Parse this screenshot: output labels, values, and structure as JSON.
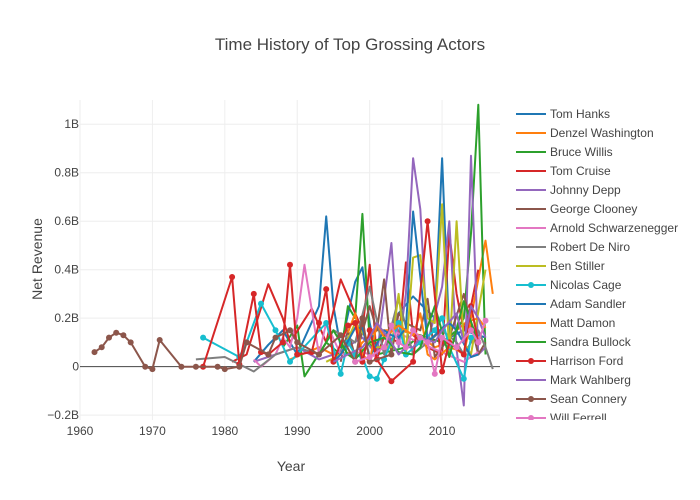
{
  "chart_data": {
    "type": "line",
    "title": "Time History of Top Grossing Actors",
    "xlabel": "Year",
    "ylabel": "Net Revenue",
    "xlim": [
      1960,
      2018
    ],
    "ylim": [
      -0.22,
      1.1
    ],
    "x_ticks": [
      1960,
      1970,
      1980,
      1990,
      2000,
      2010
    ],
    "y_ticks": [
      {
        "value": -0.2,
        "label": "−0.2B"
      },
      {
        "value": 0,
        "label": "0"
      },
      {
        "value": 0.2,
        "label": "0.2B"
      },
      {
        "value": 0.4,
        "label": "0.4B"
      },
      {
        "value": 0.6,
        "label": "0.6B"
      },
      {
        "value": 0.8,
        "label": "0.8B"
      },
      {
        "value": 1.0,
        "label": "1B"
      }
    ],
    "grid": true,
    "legend_position": "right",
    "series": [
      {
        "name": "Tom Hanks",
        "color": "#1f77b4",
        "marker": "none",
        "x": [
          1984,
          1986,
          1988,
          1990,
          1993,
          1994,
          1995,
          1996,
          1998,
          1999,
          2000,
          2001,
          2002,
          2004,
          2006,
          2009,
          2010,
          2011,
          2013,
          2016
        ],
        "y": [
          0.02,
          0.09,
          0.15,
          0.05,
          0.25,
          0.62,
          0.25,
          0.08,
          0.35,
          0.41,
          0.18,
          0.05,
          0.12,
          0.22,
          0.29,
          0.2,
          0.86,
          0.12,
          0.15,
          0.12
        ]
      },
      {
        "name": "Denzel Washington",
        "color": "#ff7f0e",
        "marker": "none",
        "x": [
          1989,
          1993,
          1995,
          1998,
          1999,
          2001,
          2004,
          2007,
          2009,
          2010,
          2012,
          2014,
          2016,
          2017
        ],
        "y": [
          0.03,
          0.08,
          0.05,
          0.06,
          0.1,
          0.15,
          0.15,
          0.13,
          0.08,
          0.09,
          0.15,
          0.2,
          0.52,
          0.3
        ]
      },
      {
        "name": "Bruce Willis",
        "color": "#2ca02c",
        "marker": "none",
        "x": [
          1988,
          1990,
          1991,
          1994,
          1996,
          1997,
          1998,
          1999,
          2000,
          2001,
          2005,
          2007,
          2010,
          2012,
          2013,
          2014,
          2015,
          2016
        ],
        "y": [
          0.08,
          0.17,
          -0.04,
          0.1,
          0.05,
          0.25,
          0.2,
          0.63,
          0.1,
          0.05,
          0.08,
          0.13,
          0.1,
          0.15,
          0.2,
          0.55,
          1.08,
          0.05
        ]
      },
      {
        "name": "Tom Cruise",
        "color": "#d62728",
        "marker": "none",
        "x": [
          1981,
          1983,
          1986,
          1988,
          1989,
          1992,
          1994,
          1996,
          1999,
          2000,
          2001,
          2002,
          2004,
          2005,
          2006,
          2008,
          2010,
          2011,
          2012,
          2013,
          2014,
          2015
        ],
        "y": [
          0.02,
          0.05,
          0.34,
          0.2,
          0.1,
          0.24,
          0.1,
          0.36,
          0.15,
          0.42,
          0.03,
          0.13,
          0.1,
          0.43,
          0.13,
          0.08,
          0.05,
          0.55,
          0.3,
          0.15,
          0.25,
          0.4
        ]
      },
      {
        "name": "Johnny Depp",
        "color": "#9467bd",
        "marker": "none",
        "x": [
          1984,
          1990,
          1993,
          1995,
          1999,
          2001,
          2003,
          2004,
          2005,
          2006,
          2007,
          2008,
          2010,
          2011,
          2012,
          2013,
          2014,
          2015,
          2016
        ],
        "y": [
          0.02,
          0.08,
          0.03,
          0.05,
          0.12,
          0.05,
          0.51,
          0.08,
          0.3,
          0.86,
          0.65,
          0.1,
          0.33,
          0.6,
          0.07,
          -0.16,
          0.87,
          0.05,
          0.08
        ]
      },
      {
        "name": "George Clooney",
        "color": "#8c564b",
        "marker": "none",
        "x": [
          1996,
          1997,
          1998,
          2000,
          2001,
          2002,
          2003,
          2004,
          2005,
          2007,
          2008,
          2009,
          2011,
          2013,
          2015,
          2016
        ],
        "y": [
          0.02,
          0.15,
          0.04,
          0.25,
          0.15,
          0.36,
          0.05,
          0.22,
          0.18,
          0.15,
          0.28,
          0.04,
          0.12,
          0.3,
          0.05,
          0.1
        ]
      },
      {
        "name": "Arnold Schwarzenegger",
        "color": "#e377c2",
        "marker": "none",
        "x": [
          1984,
          1985,
          1987,
          1988,
          1989,
          1990,
          1991,
          1993,
          1994,
          1996,
          1999,
          2002,
          2003,
          2013,
          2015
        ],
        "y": [
          0.03,
          0.0,
          0.05,
          0.12,
          0.08,
          0.2,
          0.42,
          0.05,
          0.18,
          0.05,
          0.06,
          0.03,
          0.15,
          0.02,
          0.06
        ]
      },
      {
        "name": "Robert De Niro",
        "color": "#7f7f7f",
        "marker": "none",
        "x": [
          1976,
          1980,
          1984,
          1987,
          1990,
          1993,
          1995,
          1997,
          1998,
          2000,
          2002,
          2004,
          2006,
          2008,
          2010,
          2012,
          2013,
          2015,
          2016,
          2017
        ],
        "y": [
          0.03,
          0.04,
          -0.02,
          0.05,
          0.08,
          0.05,
          0.15,
          0.12,
          0.1,
          0.33,
          0.05,
          0.28,
          0.05,
          0.1,
          0.15,
          0.1,
          0.05,
          0.15,
          0.08,
          -0.01
        ]
      },
      {
        "name": "Ben Stiller",
        "color": "#bcbd22",
        "marker": "none",
        "x": [
          1994,
          1996,
          1998,
          2000,
          2001,
          2003,
          2004,
          2005,
          2006,
          2007,
          2008,
          2009,
          2010,
          2011,
          2012,
          2013,
          2014,
          2016
        ],
        "y": [
          0.02,
          0.05,
          0.18,
          0.1,
          0.08,
          0.08,
          0.3,
          0.05,
          0.45,
          0.46,
          0.2,
          0.18,
          0.67,
          0.05,
          0.6,
          0.1,
          0.05,
          0.4
        ]
      },
      {
        "name": "Nicolas Cage",
        "color": "#17becf",
        "marker": "circle",
        "x": [
          1977,
          1982,
          1983,
          1985,
          1987,
          1989,
          1990,
          1994,
          1996,
          1997,
          1998,
          1999,
          2000,
          2001,
          2002,
          2004,
          2005,
          2007,
          2009,
          2010,
          2011,
          2013,
          2014
        ],
        "y": [
          0.12,
          0.04,
          0.1,
          0.26,
          0.15,
          0.02,
          0.05,
          0.18,
          -0.03,
          0.1,
          0.05,
          0.04,
          -0.04,
          -0.05,
          0.03,
          0.18,
          0.05,
          0.1,
          0.15,
          0.2,
          0.08,
          -0.05,
          0.12
        ]
      },
      {
        "name": "Adam Sandler",
        "color": "#1f77b4",
        "marker": "none",
        "x": [
          1995,
          1996,
          1998,
          1999,
          2000,
          2002,
          2003,
          2004,
          2005,
          2006,
          2008,
          2010,
          2011,
          2012,
          2014,
          2015
        ],
        "y": [
          0.02,
          0.05,
          0.16,
          0.16,
          0.04,
          0.15,
          0.13,
          0.12,
          0.16,
          0.64,
          0.1,
          0.16,
          0.18,
          0.15,
          0.04,
          0.05
        ]
      },
      {
        "name": "Matt Damon",
        "color": "#ff7f0e",
        "marker": "none",
        "x": [
          1997,
          1998,
          1999,
          2000,
          2001,
          2002,
          2004,
          2006,
          2007,
          2008,
          2009,
          2011,
          2012,
          2013,
          2014,
          2015,
          2016
        ],
        "y": [
          0.14,
          0.22,
          0.05,
          0.02,
          0.18,
          0.12,
          0.17,
          0.13,
          0.22,
          0.05,
          0.03,
          0.08,
          0.07,
          0.05,
          0.19,
          0.2,
          0.16
        ]
      },
      {
        "name": "Sandra Bullock",
        "color": "#2ca02c",
        "marker": "none",
        "x": [
          1993,
          1994,
          1995,
          1996,
          1997,
          1998,
          2000,
          2002,
          2004,
          2006,
          2007,
          2009,
          2011,
          2013,
          2015
        ],
        "y": [
          0.05,
          0.1,
          0.15,
          0.1,
          0.05,
          0.03,
          0.1,
          0.12,
          0.06,
          0.05,
          0.08,
          0.25,
          0.04,
          0.27,
          0.1
        ]
      },
      {
        "name": "Harrison Ford",
        "color": "#d62728",
        "marker": "circle",
        "x": [
          1977,
          1981,
          1982,
          1984,
          1985,
          1986,
          1988,
          1989,
          1990,
          1992,
          1993,
          1994,
          1995,
          1997,
          1998,
          1999,
          2000,
          2001,
          2003,
          2006,
          2008,
          2010,
          2011,
          2013,
          2014,
          2015
        ],
        "y": [
          0.0,
          0.37,
          0.01,
          0.3,
          0.06,
          0.05,
          0.1,
          0.42,
          0.05,
          0.06,
          0.18,
          0.32,
          0.02,
          0.17,
          0.18,
          0.02,
          0.15,
          0.03,
          -0.06,
          0.02,
          0.6,
          -0.02,
          0.1,
          0.05,
          0.25,
          0.1
        ]
      },
      {
        "name": "Mark Wahlberg",
        "color": "#9467bd",
        "marker": "none",
        "x": [
          1995,
          1997,
          1999,
          2000,
          2001,
          2003,
          2004,
          2005,
          2006,
          2007,
          2009,
          2010,
          2012,
          2013,
          2014,
          2015,
          2016
        ],
        "y": [
          0.02,
          0.05,
          0.08,
          0.12,
          0.18,
          0.1,
          0.05,
          0.08,
          0.08,
          0.12,
          0.1,
          0.15,
          0.22,
          0.1,
          0.25,
          0.2,
          0.12
        ]
      },
      {
        "name": "Sean Connery",
        "color": "#8c564b",
        "marker": "circle",
        "x": [
          1962,
          1963,
          1964,
          1965,
          1966,
          1967,
          1969,
          1970,
          1971,
          1974,
          1976,
          1979,
          1980,
          1982,
          1983,
          1986,
          1987,
          1989,
          1990,
          1993,
          1996,
          1998,
          1999,
          2000,
          2003
        ],
        "y": [
          0.06,
          0.08,
          0.12,
          0.14,
          0.13,
          0.1,
          0.0,
          -0.01,
          0.11,
          0.0,
          0.0,
          0.0,
          -0.01,
          0.0,
          0.1,
          0.05,
          0.12,
          0.15,
          0.1,
          0.05,
          0.13,
          0.02,
          0.2,
          0.02,
          0.05
        ]
      },
      {
        "name": "Will Ferrell",
        "color": "#e377c2",
        "marker": "circle",
        "x": [
          1998,
          2000,
          2002,
          2003,
          2004,
          2005,
          2006,
          2007,
          2008,
          2009,
          2010,
          2012,
          2014,
          2015,
          2016
        ],
        "y": [
          0.02,
          0.04,
          0.08,
          0.17,
          0.1,
          0.08,
          0.15,
          0.12,
          0.1,
          -0.03,
          0.12,
          0.08,
          0.15,
          0.1,
          0.19
        ]
      }
    ]
  }
}
